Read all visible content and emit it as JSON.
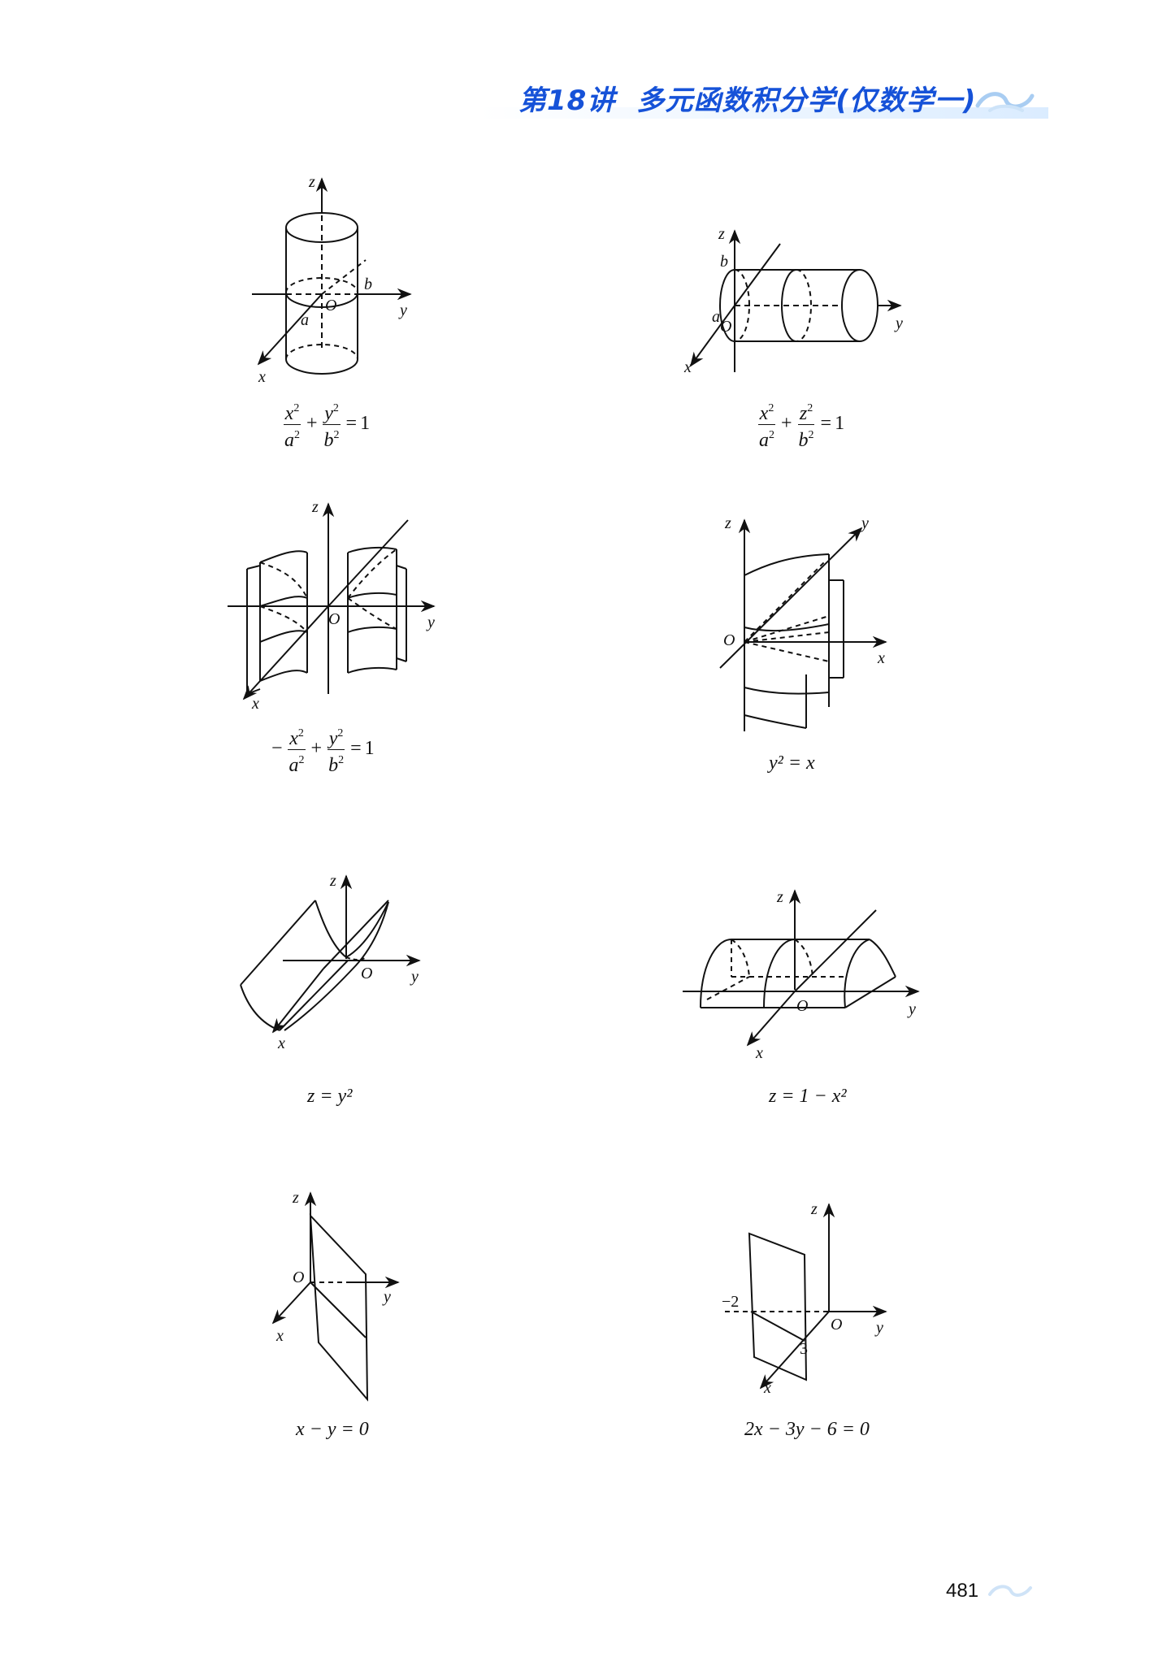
{
  "header": {
    "lecture": "第18讲",
    "title": "多元函数积分学(仅数学一)"
  },
  "figures": [
    {
      "axes": [
        "z",
        "x",
        "y"
      ],
      "labels": [
        "O",
        "a",
        "b"
      ],
      "caption": {
        "type": "frac2",
        "n1": "x",
        "d1": "a",
        "n2": "y",
        "d2": "b",
        "rhs": "1"
      }
    },
    {
      "axes": [
        "z",
        "x",
        "y"
      ],
      "labels": [
        "O",
        "a",
        "b"
      ],
      "caption": {
        "type": "frac2",
        "n1": "x",
        "d1": "a",
        "n2": "z",
        "d2": "b",
        "rhs": "1"
      }
    },
    {
      "axes": [
        "z",
        "x",
        "y"
      ],
      "labels": [
        "O"
      ],
      "caption": {
        "type": "frac2neg",
        "n1": "x",
        "d1": "a",
        "n2": "y",
        "d2": "b",
        "rhs": "1"
      }
    },
    {
      "axes": [
        "z",
        "x",
        "y"
      ],
      "labels": [
        "O"
      ],
      "caption": {
        "type": "text",
        "text": "y² = x"
      }
    },
    {
      "axes": [
        "z",
        "x",
        "y"
      ],
      "labels": [
        "O"
      ],
      "caption": {
        "type": "text",
        "text": "z = y²"
      }
    },
    {
      "axes": [
        "z",
        "x",
        "y"
      ],
      "labels": [
        "O"
      ],
      "caption": {
        "type": "text",
        "text": "z = 1 − x²"
      }
    },
    {
      "axes": [
        "z",
        "x",
        "y"
      ],
      "labels": [
        "O"
      ],
      "caption": {
        "type": "text",
        "text": "x − y = 0"
      }
    },
    {
      "axes": [
        "z",
        "x",
        "y"
      ],
      "labels": [
        "O",
        "−2",
        "3"
      ],
      "caption": {
        "type": "text",
        "text": "2x − 3y − 6 = 0"
      }
    }
  ],
  "page_number": "481"
}
